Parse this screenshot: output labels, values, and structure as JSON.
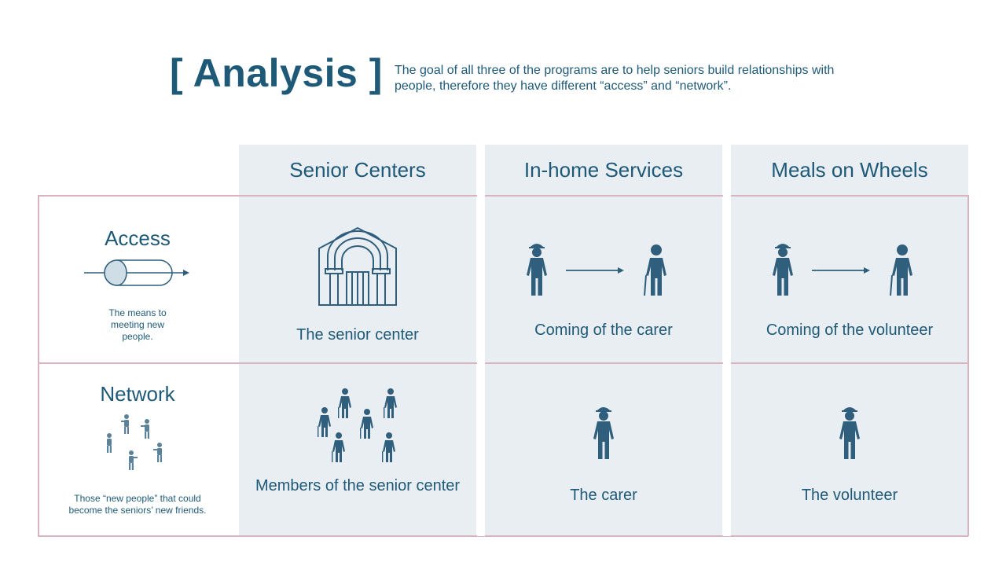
{
  "header": {
    "title": "[ Analysis ]",
    "description": "The goal of all three of the programs are to help seniors build relationships with people, therefore they have different “access” and “network”."
  },
  "columns": [
    {
      "label": "Senior Centers"
    },
    {
      "label": "In-home Services"
    },
    {
      "label": "Meals on Wheels"
    }
  ],
  "rows": {
    "access": {
      "title": "Access",
      "description": "The means to meeting new people.",
      "cells": [
        "The senior center",
        "Coming of the carer",
        "Coming of the volunteer"
      ]
    },
    "network": {
      "title": "Network",
      "description": "Those “new people” that could become the seniors’ new friends.",
      "cells": [
        "Members of the senior center",
        "The carer",
        "The volunteer"
      ]
    }
  },
  "colors": {
    "primary": "#1e5a78",
    "icon": "#2f5f7c",
    "muted_icon": "#5b8298",
    "column_bg": "#e9eef3",
    "grid_line": "#d9b4bf"
  },
  "icons": [
    "pill-capsule-icon",
    "building-icon",
    "person-icon",
    "arrow-right-icon",
    "elder-icon",
    "crowd-icon",
    "people-group-icon"
  ]
}
